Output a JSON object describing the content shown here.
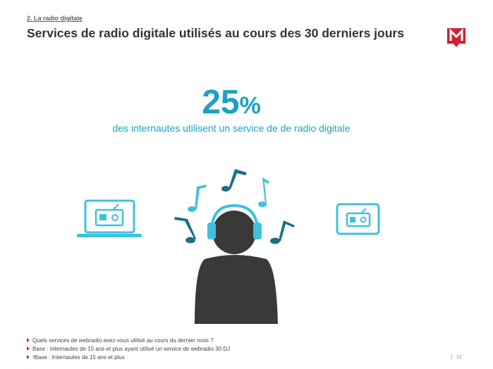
{
  "header": {
    "section": "2. La radio digitale",
    "title": "Services de radio digitale utilisés au cours des 30 derniers jours"
  },
  "stat": {
    "number": "25",
    "unit": "%",
    "caption": "des internautes utilisent un service de de radio digitale"
  },
  "footer": {
    "notes": [
      "Quels services de webradio avez-vous utilisé au cours du dernier mois ?",
      "Base : Internautes de 15 ans et plus ayant utilisé un service de webradio 30 DJ",
      "¹Base : Internautes de 15 ans et plus"
    ],
    "page": "12"
  }
}
